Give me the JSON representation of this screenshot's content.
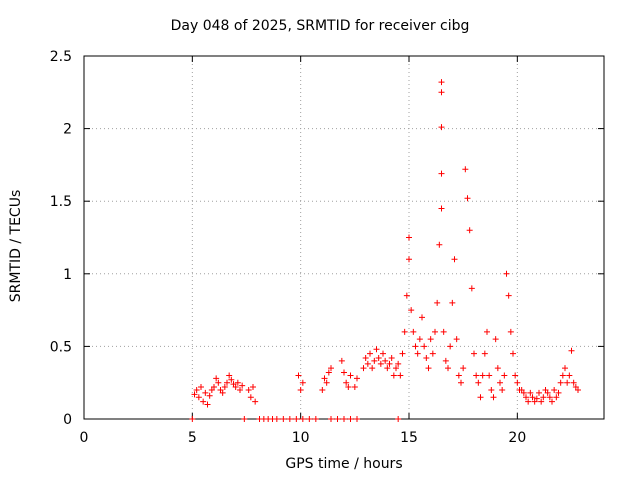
{
  "chart_data": {
    "type": "scatter",
    "title": "Day 048 of 2025, SRMTID for receiver cibg",
    "xlabel": "GPS time / hours",
    "ylabel": "SRMTID / TECUs",
    "xlim": [
      0,
      24
    ],
    "ylim": [
      0,
      2.5
    ],
    "xticks": [
      0,
      5,
      10,
      15,
      20
    ],
    "yticks": [
      0,
      0.5,
      1,
      1.5,
      2,
      2.5
    ],
    "ytick_labels": [
      "0",
      "0.5",
      "1",
      "1.5",
      "2",
      "2.5"
    ],
    "grid": true,
    "marker": "+",
    "color": "#ff0000",
    "series": [
      {
        "name": "SRMTID",
        "x": [
          5.1,
          5.2,
          5.3,
          5.4,
          5.5,
          5.6,
          5.7,
          5.8,
          5.9,
          6.0,
          6.1,
          6.2,
          6.3,
          6.4,
          6.5,
          6.6,
          6.7,
          6.8,
          6.9,
          7.0,
          7.1,
          7.2,
          7.3,
          7.6,
          7.7,
          7.8,
          7.9,
          9.9,
          10.0,
          10.1,
          11.0,
          11.1,
          11.2,
          11.3,
          11.4,
          11.9,
          12.0,
          12.1,
          12.2,
          12.3,
          12.5,
          12.6,
          12.9,
          13.0,
          13.1,
          13.2,
          13.3,
          13.4,
          13.5,
          13.6,
          13.7,
          13.8,
          13.9,
          14.0,
          14.1,
          14.2,
          14.3,
          14.4,
          14.5,
          14.6,
          14.7,
          14.8,
          14.9,
          15.0,
          15.0,
          15.1,
          15.2,
          15.3,
          15.4,
          15.5,
          15.6,
          15.7,
          15.8,
          15.9,
          16.0,
          16.1,
          16.2,
          16.3,
          16.4,
          16.5,
          16.5,
          16.5,
          16.5,
          16.5,
          16.6,
          16.7,
          16.8,
          16.9,
          17.0,
          17.1,
          17.2,
          17.3,
          17.4,
          17.5,
          17.6,
          17.7,
          17.8,
          17.9,
          18.0,
          18.1,
          18.2,
          18.3,
          18.4,
          18.5,
          18.6,
          18.7,
          18.8,
          18.9,
          19.0,
          19.1,
          19.2,
          19.3,
          19.4,
          19.5,
          19.6,
          19.7,
          19.8,
          19.9,
          20.0,
          20.1,
          20.2,
          20.3,
          20.4,
          20.5,
          20.6,
          20.7,
          20.8,
          20.9,
          21.0,
          21.1,
          21.2,
          21.3,
          21.4,
          21.5,
          21.6,
          21.7,
          21.8,
          21.9,
          22.0,
          22.1,
          22.2,
          22.3,
          22.4,
          22.5,
          22.6,
          22.7,
          22.8,
          5.0,
          7.4,
          8.1,
          8.3,
          8.5,
          8.7,
          8.9,
          9.2,
          9.5,
          9.8,
          10.1,
          10.4,
          10.7,
          11.4,
          11.7,
          12.0,
          12.3,
          12.6,
          14.5
        ],
        "y": [
          0.17,
          0.2,
          0.15,
          0.22,
          0.12,
          0.18,
          0.1,
          0.16,
          0.2,
          0.22,
          0.28,
          0.25,
          0.2,
          0.18,
          0.22,
          0.25,
          0.3,
          0.27,
          0.24,
          0.22,
          0.25,
          0.2,
          0.23,
          0.2,
          0.15,
          0.22,
          0.12,
          0.3,
          0.2,
          0.25,
          0.2,
          0.28,
          0.25,
          0.32,
          0.35,
          0.4,
          0.32,
          0.25,
          0.22,
          0.3,
          0.22,
          0.28,
          0.35,
          0.42,
          0.38,
          0.45,
          0.35,
          0.4,
          0.48,
          0.42,
          0.38,
          0.45,
          0.4,
          0.35,
          0.38,
          0.42,
          0.3,
          0.35,
          0.38,
          0.3,
          0.45,
          0.6,
          0.85,
          1.25,
          1.1,
          0.75,
          0.6,
          0.5,
          0.45,
          0.55,
          0.7,
          0.5,
          0.42,
          0.35,
          0.55,
          0.45,
          0.6,
          0.8,
          1.2,
          2.32,
          2.25,
          2.01,
          1.69,
          1.45,
          0.6,
          0.4,
          0.35,
          0.5,
          0.8,
          1.1,
          0.55,
          0.3,
          0.25,
          0.35,
          1.72,
          1.52,
          1.3,
          0.9,
          0.45,
          0.3,
          0.25,
          0.15,
          0.3,
          0.45,
          0.6,
          0.3,
          0.2,
          0.15,
          0.55,
          0.35,
          0.25,
          0.2,
          0.3,
          1.0,
          0.85,
          0.6,
          0.45,
          0.3,
          0.25,
          0.2,
          0.2,
          0.18,
          0.15,
          0.12,
          0.18,
          0.15,
          0.12,
          0.14,
          0.18,
          0.12,
          0.15,
          0.2,
          0.18,
          0.15,
          0.12,
          0.2,
          0.15,
          0.18,
          0.25,
          0.3,
          0.35,
          0.25,
          0.3,
          0.47,
          0.25,
          0.22,
          0.2,
          0.0,
          0.0,
          0.0,
          0.0,
          0.0,
          0.0,
          0.0,
          0.0,
          0.0,
          0.0,
          0.0,
          0.0,
          0.0,
          0.0,
          0.0,
          0.0,
          0.0,
          0.0,
          0.0
        ]
      }
    ]
  }
}
